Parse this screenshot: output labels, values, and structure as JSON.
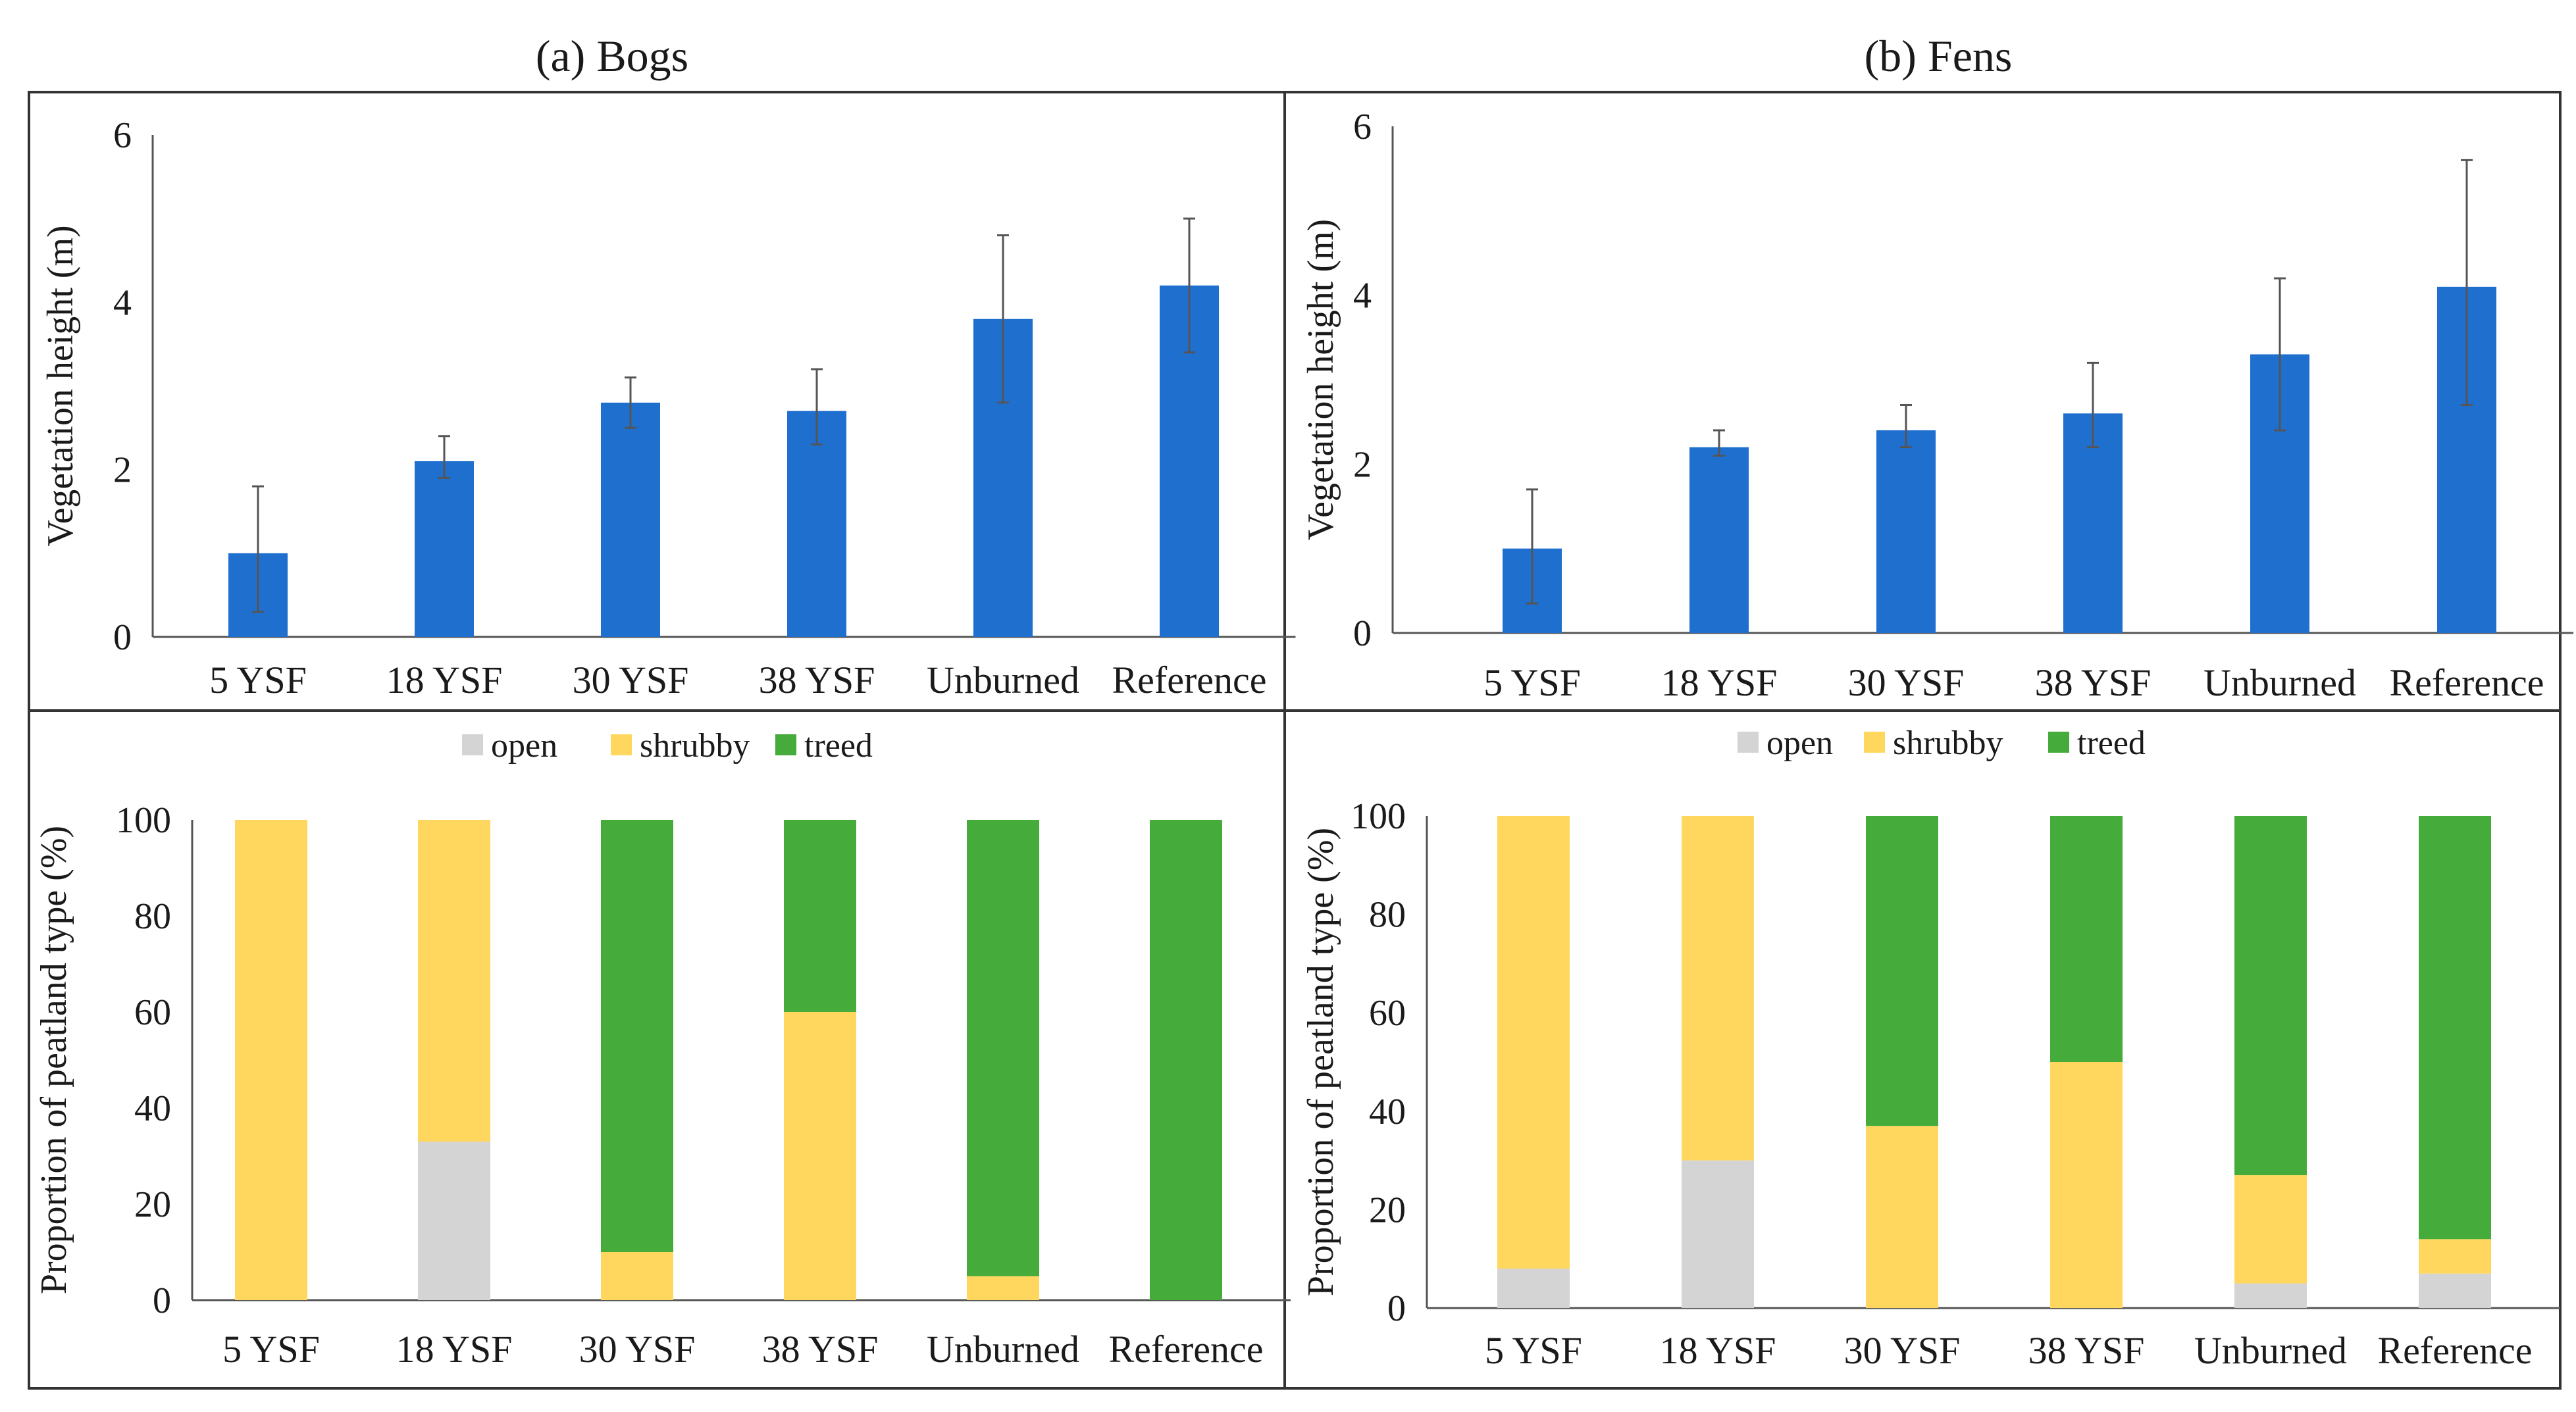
{
  "chart_data": [
    {
      "id": "bogs-height",
      "type": "bar",
      "title": "(a) Bogs",
      "ylabel": "Vegetation height (m)",
      "xlabel": "",
      "ylim": [
        0,
        6
      ],
      "yticks": [
        0,
        2,
        4,
        6
      ],
      "categories": [
        "5 YSF",
        "18 YSF",
        "30 YSF",
        "38 YSF",
        "Unburned",
        "Reference"
      ],
      "values": [
        1.0,
        2.1,
        2.8,
        2.7,
        3.8,
        4.2
      ],
      "error_low": [
        0.3,
        1.9,
        2.5,
        2.3,
        2.8,
        3.4
      ],
      "error_high": [
        1.8,
        2.4,
        3.1,
        3.2,
        4.8,
        5.0
      ],
      "color": "#1f6fcf",
      "grid": false
    },
    {
      "id": "fens-height",
      "type": "bar",
      "title": "(b) Fens",
      "ylabel": "Vegetation height (m)",
      "xlabel": "",
      "ylim": [
        0,
        6
      ],
      "yticks": [
        0,
        2,
        4,
        6
      ],
      "categories": [
        "5 YSF",
        "18 YSF",
        "30 YSF",
        "38 YSF",
        "Unburned",
        "Reference"
      ],
      "values": [
        1.0,
        2.2,
        2.4,
        2.6,
        3.3,
        4.1
      ],
      "error_low": [
        0.35,
        2.1,
        2.2,
        2.2,
        2.4,
        2.7
      ],
      "error_high": [
        1.7,
        2.4,
        2.7,
        3.2,
        4.2,
        5.6
      ],
      "color": "#1f6fcf",
      "grid": false
    },
    {
      "id": "bogs-proportion",
      "type": "bar",
      "stacked": true,
      "ylabel": "Proportion of peatland type (%)",
      "xlabel": "",
      "ylim": [
        0,
        100
      ],
      "yticks": [
        0,
        20,
        40,
        60,
        80,
        100
      ],
      "legend_position": "top-center",
      "categories": [
        "5 YSF",
        "18 YSF",
        "30 YSF",
        "38 YSF",
        "Unburned",
        "Reference"
      ],
      "series": [
        {
          "name": "open",
          "color": "#d4d4d4",
          "values": [
            0,
            33,
            0,
            0,
            0,
            0
          ]
        },
        {
          "name": "shrubby",
          "color": "#ffd75e",
          "values": [
            100,
            67,
            10,
            60,
            5,
            0
          ]
        },
        {
          "name": "treed",
          "color": "#45ac3c",
          "values": [
            0,
            0,
            90,
            40,
            95,
            100
          ]
        }
      ],
      "grid": false
    },
    {
      "id": "fens-proportion",
      "type": "bar",
      "stacked": true,
      "ylabel": "Proportion of peatland type (%)",
      "xlabel": "",
      "ylim": [
        0,
        100
      ],
      "yticks": [
        0,
        20,
        40,
        60,
        80,
        100
      ],
      "legend_position": "top-center",
      "categories": [
        "5 YSF",
        "18 YSF",
        "30 YSF",
        "38 YSF",
        "Unburned",
        "Reference"
      ],
      "series": [
        {
          "name": "open",
          "color": "#d4d4d4",
          "values": [
            8,
            30,
            0,
            0,
            5,
            7
          ]
        },
        {
          "name": "shrubby",
          "color": "#ffd75e",
          "values": [
            92,
            70,
            37,
            50,
            22,
            7
          ]
        },
        {
          "name": "treed",
          "color": "#45ac3c",
          "values": [
            0,
            0,
            63,
            50,
            73,
            86
          ]
        }
      ],
      "grid": false
    }
  ]
}
